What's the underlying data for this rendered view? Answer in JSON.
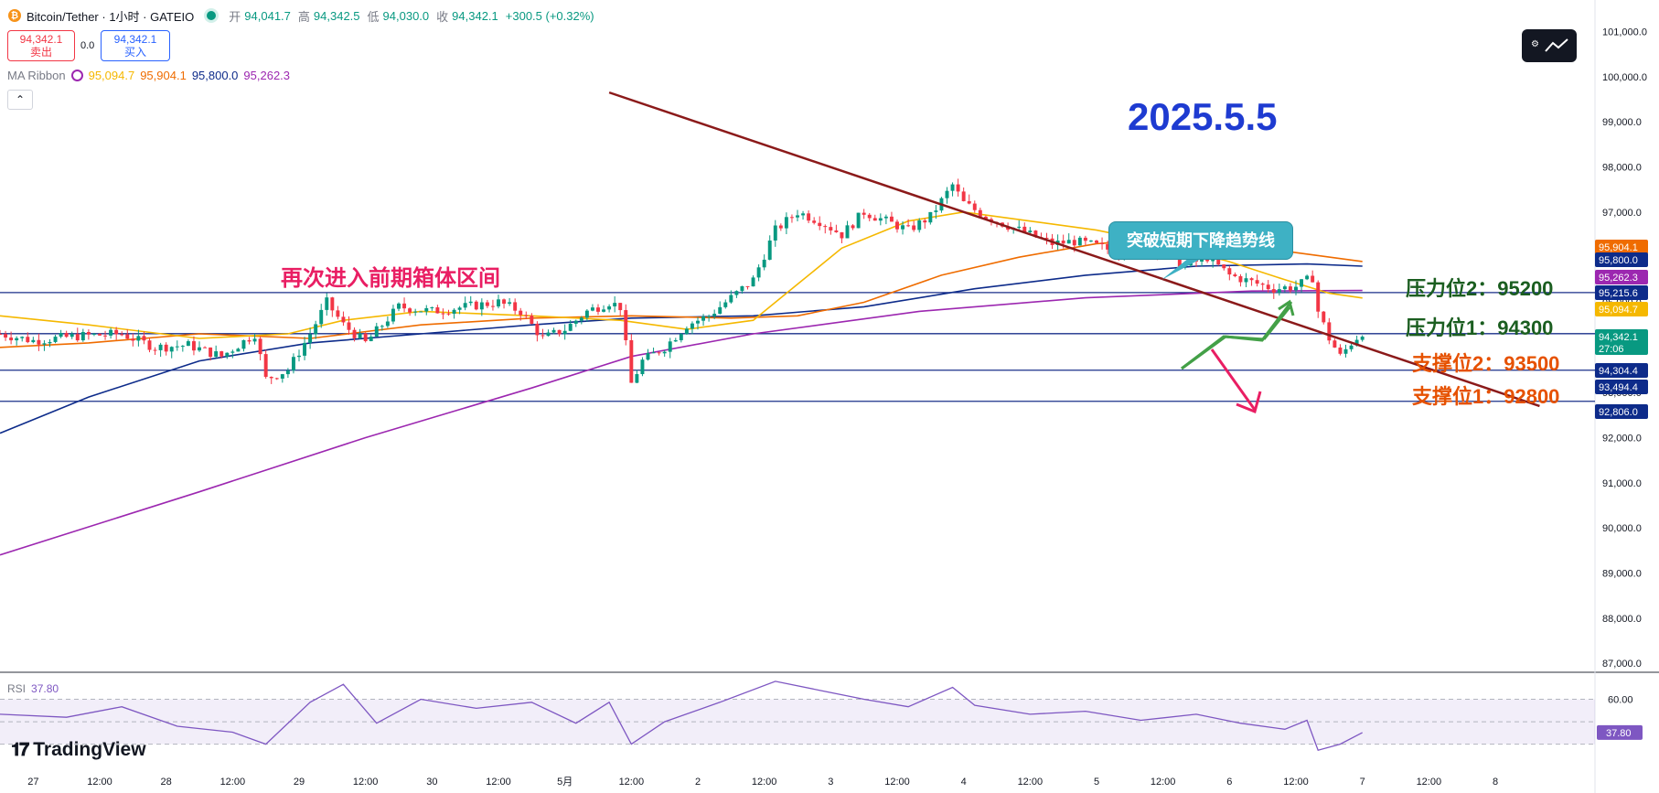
{
  "header": {
    "symbol": "Bitcoin/Tether · 1小时 · GATEIO",
    "open_label": "开",
    "open": "94,041.7",
    "high_label": "高",
    "high": "94,342.5",
    "low_label": "低",
    "low": "94,030.0",
    "close_label": "收",
    "close": "94,342.1",
    "change": "+300.5 (+0.32%)"
  },
  "trade": {
    "sell_price": "94,342.1",
    "sell_label": "卖出",
    "spread": "0.0",
    "buy_price": "94,342.1",
    "buy_label": "买入"
  },
  "ma_ribbon": {
    "label": "MA Ribbon",
    "values": [
      {
        "value": "95,094.7",
        "color": "#f5b800"
      },
      {
        "value": "95,904.1",
        "color": "#ef6c00"
      },
      {
        "value": "95,800.0",
        "color": "#0d2b8a"
      },
      {
        "value": "95,262.3",
        "color": "#9c27b0"
      }
    ]
  },
  "collapse_icon": "chevron-up-icon",
  "toolbar_icon": "trend-line-icon",
  "watermark": "TradingView",
  "annotations": {
    "date": "2025.5.5",
    "box_range": "再次进入前期箱体区间",
    "breakout_callout": "突破短期下降趋势线",
    "resistance2": "压力位2：95200",
    "resistance1": "压力位1：94300",
    "support2": "支撑位2：93500",
    "support1": "支撑位1：92800"
  },
  "rsi": {
    "label": "RSI",
    "value": "37.80",
    "axis_labels": [
      "60.00",
      "37.80"
    ]
  },
  "colors": {
    "up": "#089981",
    "down": "#f23645",
    "trendline": "#8b1a1a",
    "hline": "#1a2f8a",
    "resistance_text": "#1b5e20",
    "support_text": "#e65100",
    "box_text": "#e91e63",
    "arrow_up": "#43a047",
    "arrow_down": "#e91e63",
    "rsi": "#7e57c2"
  },
  "chart_data": {
    "type": "candlestick",
    "timeframe": "1小时",
    "price_axis": {
      "ticks": [
        "101,000.0",
        "100,000.0",
        "99,000.0",
        "98,000.0",
        "97,000.0",
        "96,000.0",
        "95,000.0",
        "94,000.0",
        "93,000.0",
        "92,000.0",
        "91,000.0",
        "90,000.0",
        "89,000.0",
        "88,000.0",
        "87,000.0"
      ],
      "range": [
        86800,
        101700
      ]
    },
    "time_axis": {
      "ticks": [
        "27",
        "12:00",
        "28",
        "12:00",
        "29",
        "12:00",
        "30",
        "12:00",
        "5月",
        "12:00",
        "2",
        "12:00",
        "3",
        "12:00",
        "4",
        "12:00",
        "5",
        "12:00",
        "6",
        "12:00",
        "7",
        "12:00",
        "8"
      ],
      "range_hours": [
        -6,
        282
      ]
    },
    "price_labels": [
      {
        "value": "95,904.1",
        "bg": "#ef6c00"
      },
      {
        "value": "95,800.0",
        "bg": "#0d2b8a"
      },
      {
        "value": "95,262.3",
        "bg": "#9c27b0"
      },
      {
        "value": "95,215.6",
        "bg": "#0d2b8a"
      },
      {
        "value": "95,094.7",
        "bg": "#f5b800"
      },
      {
        "value": "94,342.1",
        "bg": "#089981",
        "sub": "27:06"
      },
      {
        "value": "94,304.4",
        "bg": "#0d2b8a"
      },
      {
        "value": "93,494.4",
        "bg": "#0d2b8a"
      },
      {
        "value": "92,806.0",
        "bg": "#0d2b8a"
      }
    ],
    "horizontal_levels": [
      95215.6,
      94304.4,
      93494.4,
      92806.0
    ],
    "trendline": [
      {
        "t": 104,
        "p": 99650
      },
      {
        "t": 272,
        "p": 92700
      }
    ],
    "anchors": [
      [
        -6,
        94300
      ],
      [
        0,
        94150
      ],
      [
        8,
        94250
      ],
      [
        16,
        94300
      ],
      [
        22,
        94000
      ],
      [
        28,
        94050
      ],
      [
        34,
        93800
      ],
      [
        40,
        94300
      ],
      [
        42,
        93300
      ],
      [
        46,
        93500
      ],
      [
        50,
        94300
      ],
      [
        53,
        95000
      ],
      [
        56,
        94500
      ],
      [
        60,
        94100
      ],
      [
        66,
        94900
      ],
      [
        72,
        94800
      ],
      [
        78,
        94900
      ],
      [
        84,
        95000
      ],
      [
        88,
        94800
      ],
      [
        92,
        94200
      ],
      [
        96,
        94400
      ],
      [
        100,
        94800
      ],
      [
        104,
        95000
      ],
      [
        106,
        94900
      ],
      [
        108,
        93200
      ],
      [
        110,
        93700
      ],
      [
        114,
        94000
      ],
      [
        118,
        94500
      ],
      [
        122,
        94700
      ],
      [
        126,
        95100
      ],
      [
        130,
        95500
      ],
      [
        134,
        96600
      ],
      [
        138,
        97000
      ],
      [
        142,
        96800
      ],
      [
        146,
        96500
      ],
      [
        150,
        97000
      ],
      [
        154,
        96800
      ],
      [
        158,
        96600
      ],
      [
        162,
        96900
      ],
      [
        166,
        97600
      ],
      [
        168,
        97200
      ],
      [
        172,
        96900
      ],
      [
        176,
        96700
      ],
      [
        180,
        96500
      ],
      [
        184,
        96300
      ],
      [
        188,
        96350
      ],
      [
        192,
        96250
      ],
      [
        196,
        96100
      ],
      [
        200,
        96300
      ],
      [
        204,
        96150
      ],
      [
        208,
        95800
      ],
      [
        212,
        96000
      ],
      [
        216,
        95600
      ],
      [
        220,
        95450
      ],
      [
        224,
        95300
      ],
      [
        228,
        95350
      ],
      [
        231,
        95550
      ],
      [
        232,
        94800
      ],
      [
        234,
        94200
      ],
      [
        236,
        93800
      ],
      [
        238,
        94100
      ],
      [
        240,
        94342.1
      ]
    ],
    "ma_lines": {
      "ma_short": {
        "color": "#f5b800",
        "points": [
          [
            -6,
            94700
          ],
          [
            10,
            94500
          ],
          [
            30,
            94200
          ],
          [
            46,
            94300
          ],
          [
            56,
            94600
          ],
          [
            70,
            94800
          ],
          [
            90,
            94700
          ],
          [
            106,
            94600
          ],
          [
            118,
            94400
          ],
          [
            130,
            94600
          ],
          [
            138,
            95400
          ],
          [
            146,
            96200
          ],
          [
            158,
            96800
          ],
          [
            168,
            97000
          ],
          [
            180,
            96800
          ],
          [
            192,
            96600
          ],
          [
            204,
            96300
          ],
          [
            216,
            95900
          ],
          [
            226,
            95500
          ],
          [
            234,
            95200
          ],
          [
            240,
            95094.7
          ]
        ]
      },
      "ma_mid": {
        "color": "#ef6c00",
        "points": [
          [
            -6,
            94000
          ],
          [
            10,
            94100
          ],
          [
            30,
            94300
          ],
          [
            50,
            94200
          ],
          [
            70,
            94500
          ],
          [
            90,
            94650
          ],
          [
            108,
            94700
          ],
          [
            126,
            94650
          ],
          [
            138,
            94700
          ],
          [
            150,
            95000
          ],
          [
            164,
            95600
          ],
          [
            178,
            96000
          ],
          [
            192,
            96300
          ],
          [
            204,
            96400
          ],
          [
            216,
            96300
          ],
          [
            228,
            96100
          ],
          [
            240,
            95904.1
          ]
        ]
      },
      "ma_long": {
        "color": "#0d2b8a",
        "points": [
          [
            -6,
            92100
          ],
          [
            10,
            92900
          ],
          [
            30,
            93700
          ],
          [
            50,
            94100
          ],
          [
            70,
            94300
          ],
          [
            90,
            94500
          ],
          [
            108,
            94650
          ],
          [
            130,
            94700
          ],
          [
            150,
            94900
          ],
          [
            170,
            95300
          ],
          [
            190,
            95600
          ],
          [
            210,
            95800
          ],
          [
            230,
            95850
          ],
          [
            240,
            95800
          ]
        ]
      },
      "ma_200": {
        "color": "#9c27b0",
        "points": [
          [
            -6,
            89400
          ],
          [
            30,
            90800
          ],
          [
            60,
            92000
          ],
          [
            90,
            93100
          ],
          [
            108,
            93800
          ],
          [
            130,
            94300
          ],
          [
            160,
            94800
          ],
          [
            190,
            95100
          ],
          [
            220,
            95250
          ],
          [
            240,
            95262.3
          ]
        ]
      }
    },
    "rsi_series": [
      [
        -6,
        50
      ],
      [
        6,
        48
      ],
      [
        16,
        55
      ],
      [
        26,
        42
      ],
      [
        36,
        38
      ],
      [
        42,
        30
      ],
      [
        50,
        58
      ],
      [
        56,
        70
      ],
      [
        62,
        44
      ],
      [
        70,
        60
      ],
      [
        80,
        54
      ],
      [
        90,
        58
      ],
      [
        98,
        44
      ],
      [
        104,
        58
      ],
      [
        108,
        30
      ],
      [
        114,
        45
      ],
      [
        124,
        58
      ],
      [
        134,
        72
      ],
      [
        142,
        66
      ],
      [
        150,
        60
      ],
      [
        158,
        55
      ],
      [
        166,
        68
      ],
      [
        170,
        56
      ],
      [
        180,
        50
      ],
      [
        190,
        52
      ],
      [
        200,
        46
      ],
      [
        210,
        50
      ],
      [
        218,
        44
      ],
      [
        226,
        40
      ],
      [
        230,
        46
      ],
      [
        232,
        26
      ],
      [
        236,
        30
      ],
      [
        240,
        37.8
      ]
    ],
    "rsi_range": [
      20,
      75
    ]
  }
}
